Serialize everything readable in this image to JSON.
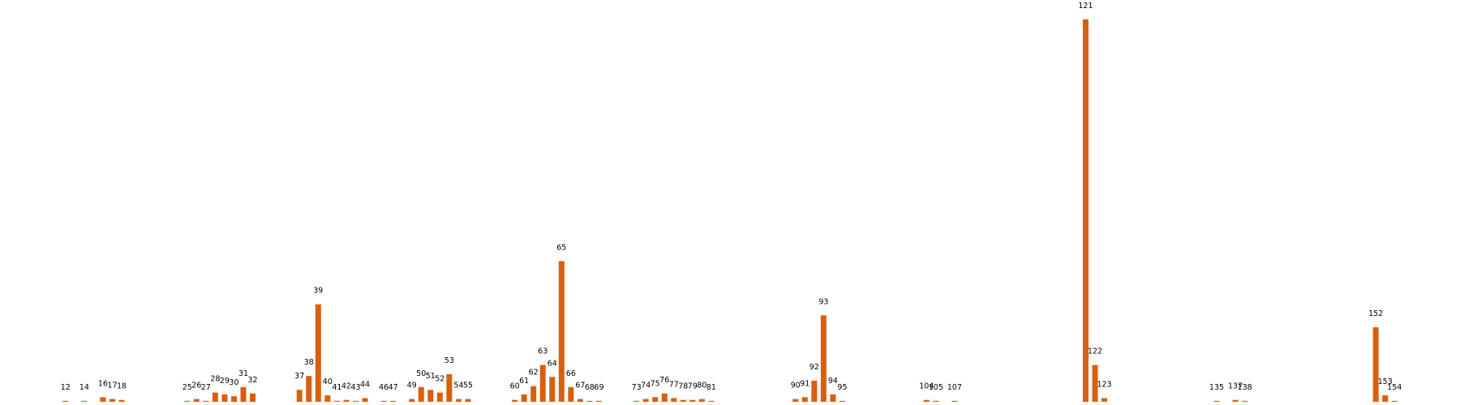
{
  "chart_data": {
    "type": "bar",
    "color": "#d95f0e",
    "x": [
      12,
      14,
      16,
      17,
      18,
      25,
      26,
      27,
      28,
      29,
      30,
      31,
      32,
      37,
      38,
      39,
      40,
      41,
      42,
      43,
      44,
      46,
      47,
      49,
      50,
      51,
      52,
      53,
      54,
      55,
      60,
      61,
      62,
      63,
      64,
      65,
      66,
      67,
      68,
      69,
      73,
      74,
      75,
      76,
      77,
      78,
      79,
      80,
      81,
      90,
      91,
      92,
      93,
      94,
      95,
      104,
      105,
      107,
      121,
      122,
      123,
      135,
      137,
      138,
      152,
      153,
      154
    ],
    "values": [
      1,
      1,
      5,
      3,
      2,
      1,
      3,
      1,
      10,
      8,
      6,
      16,
      9,
      13,
      28,
      106,
      7,
      1,
      2,
      1,
      4,
      1,
      1,
      3,
      16,
      13,
      10,
      30,
      3,
      3,
      2,
      8,
      17,
      40,
      27,
      153,
      16,
      3,
      1,
      1,
      1,
      3,
      5,
      9,
      4,
      2,
      2,
      3,
      1,
      3,
      5,
      23,
      94,
      8,
      1,
      2,
      1,
      1,
      416,
      40,
      4,
      1,
      2,
      1,
      81,
      7,
      1
    ],
    "xlim": [
      5,
      161
    ],
    "ylim": [
      0,
      430
    ]
  }
}
